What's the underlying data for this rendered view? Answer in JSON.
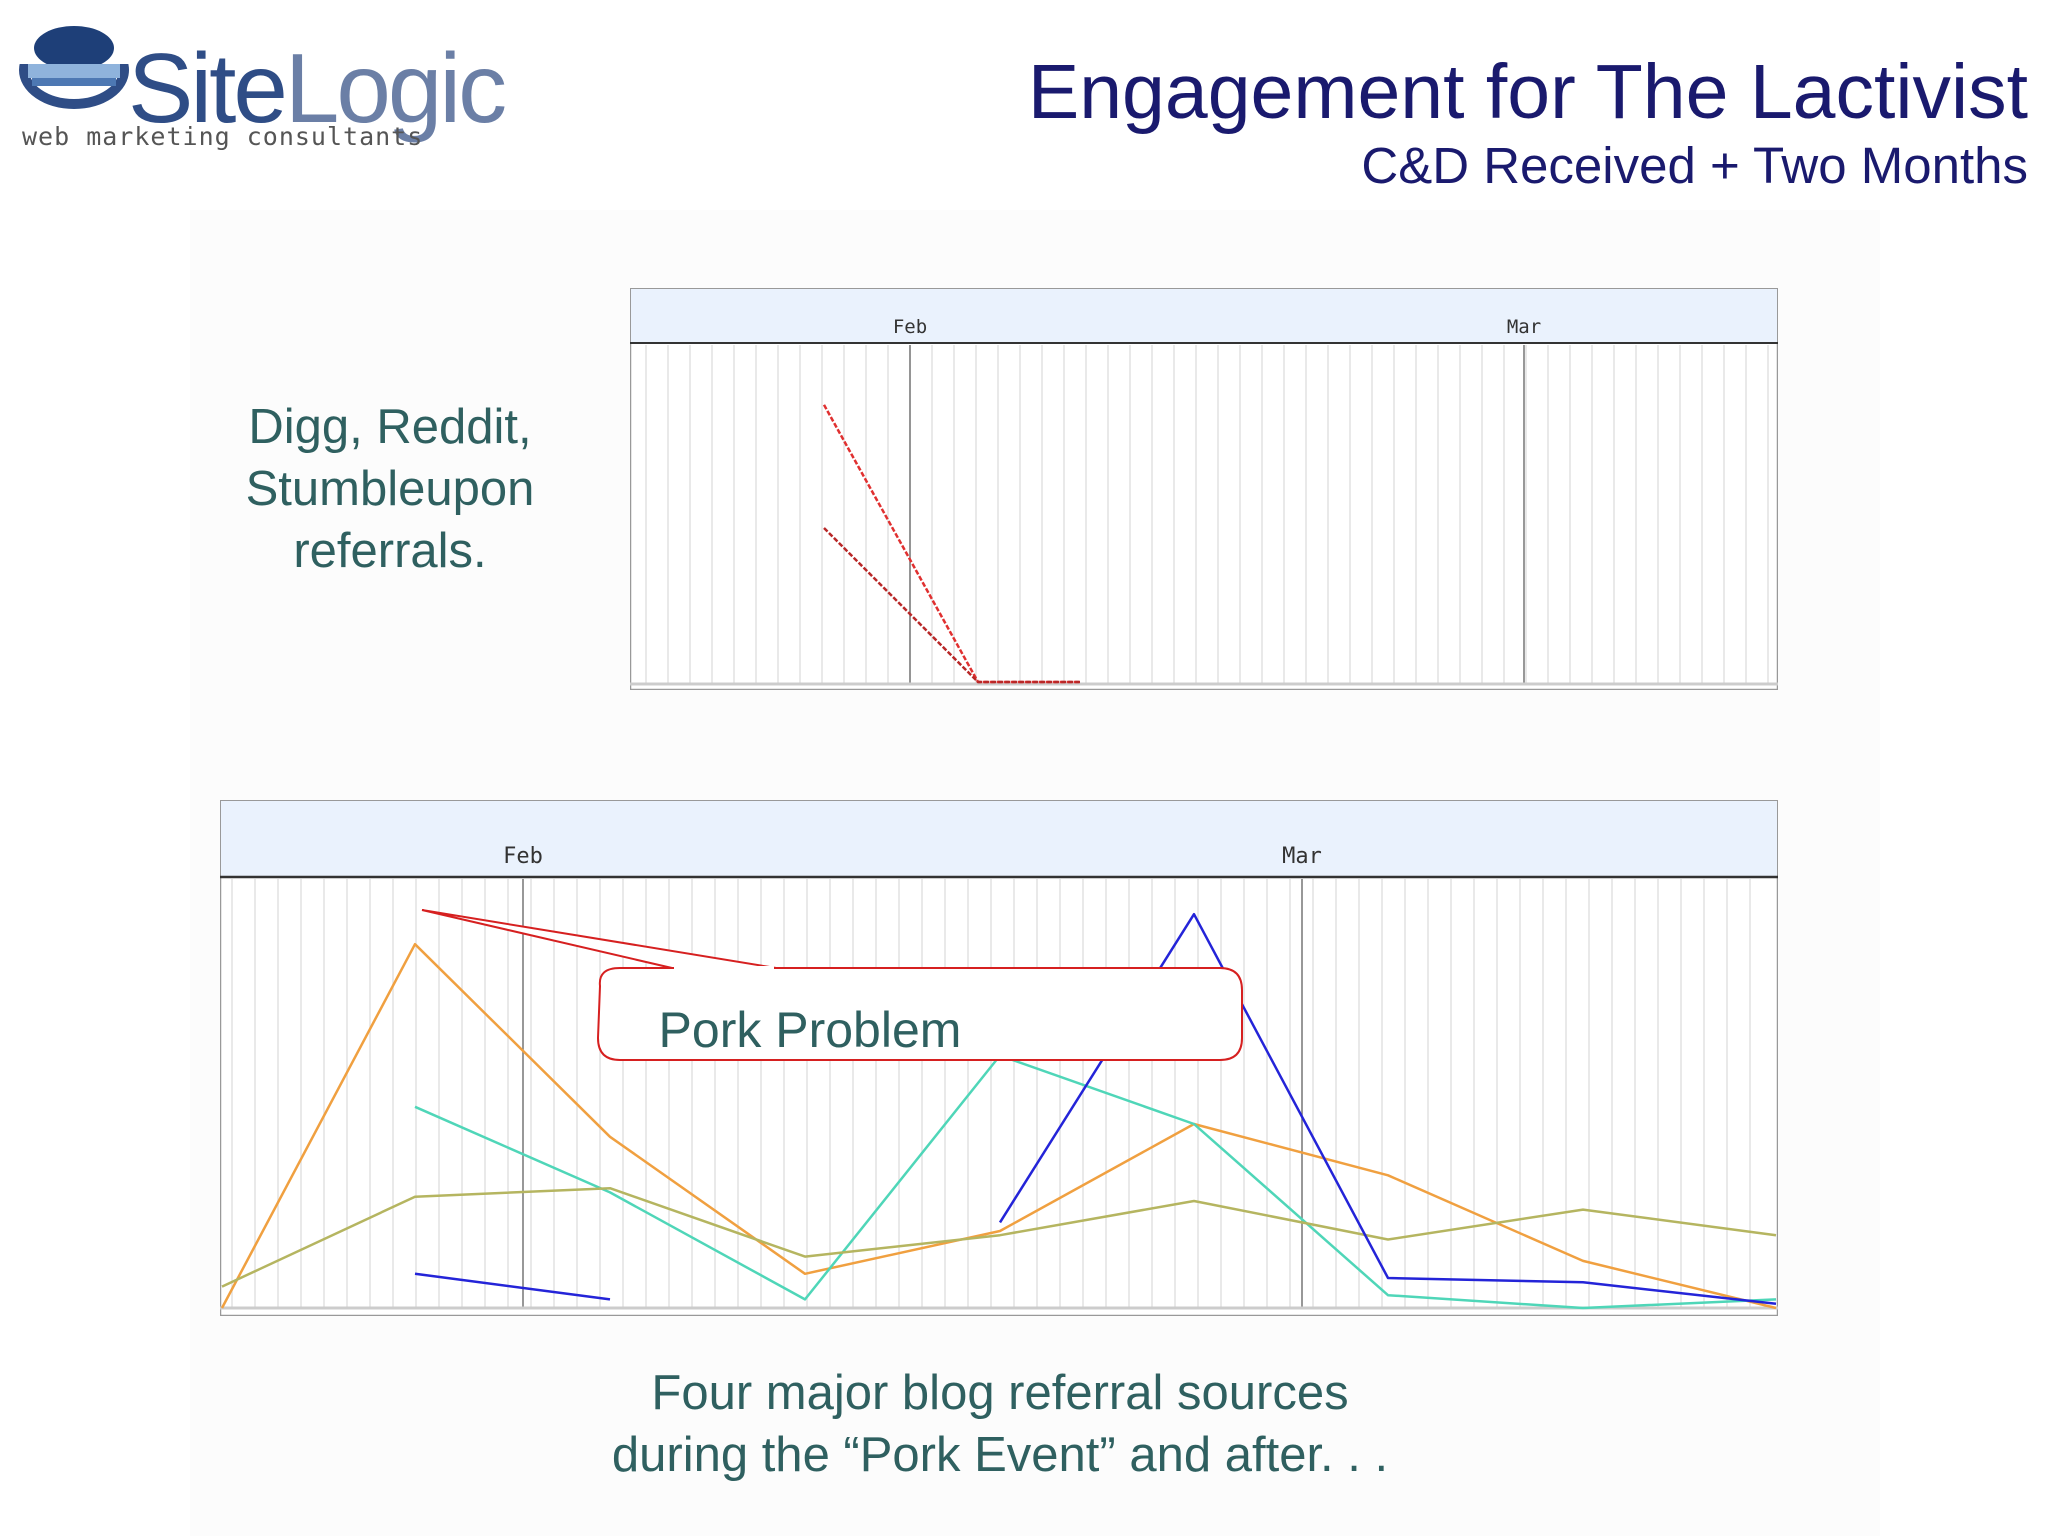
{
  "brand": {
    "name_part1": "Site",
    "name_part2": "Logic",
    "tagline": "web marketing consultants",
    "colors": {
      "primary": "#2f4d86",
      "accent": "#6b7fa6"
    }
  },
  "slide": {
    "title": "Engagement for The Lactivist",
    "subtitle": "C&D Received + Two Months",
    "side_caption": [
      "Digg, Reddit,",
      "Stumbleupon",
      "referrals."
    ],
    "bottom_caption": [
      "Four major blog referral sources",
      "during the “Pork Event” and after. . ."
    ],
    "callout": "Pork Problem",
    "colors": {
      "title": "#1a1a6e",
      "caption": "#2f6060",
      "callout_border": "#d62020"
    }
  },
  "chart_data": [
    {
      "type": "line",
      "title": "",
      "x_tick_labels": [
        "Feb",
        "Mar"
      ],
      "series": [
        {
          "color": "#e03030",
          "values": [
            null,
            9,
            0,
            0
          ]
        },
        {
          "color": "#b82828",
          "values": [
            null,
            5,
            0,
            0
          ]
        }
      ],
      "ylim": [
        0,
        10
      ],
      "grid": true
    },
    {
      "type": "line",
      "title": "",
      "x_tick_labels": [
        "Feb",
        "Mar"
      ],
      "categories_count": 9,
      "series": [
        {
          "color": "#f0a040",
          "values": [
            0,
            85,
            40,
            8,
            18,
            43,
            31,
            11,
            0
          ]
        },
        {
          "color": "#4fd6b8",
          "values": [
            null,
            47,
            27,
            2,
            59,
            43,
            3,
            0,
            2
          ]
        },
        {
          "color": "#b5b560",
          "values": [
            5,
            26,
            28,
            12,
            17,
            25,
            16,
            23,
            17
          ]
        },
        {
          "color": "#2424d8",
          "values": [
            null,
            8,
            2,
            null,
            20,
            92,
            7,
            6,
            1
          ]
        }
      ],
      "ylim": [
        0,
        100
      ],
      "grid": true
    }
  ]
}
